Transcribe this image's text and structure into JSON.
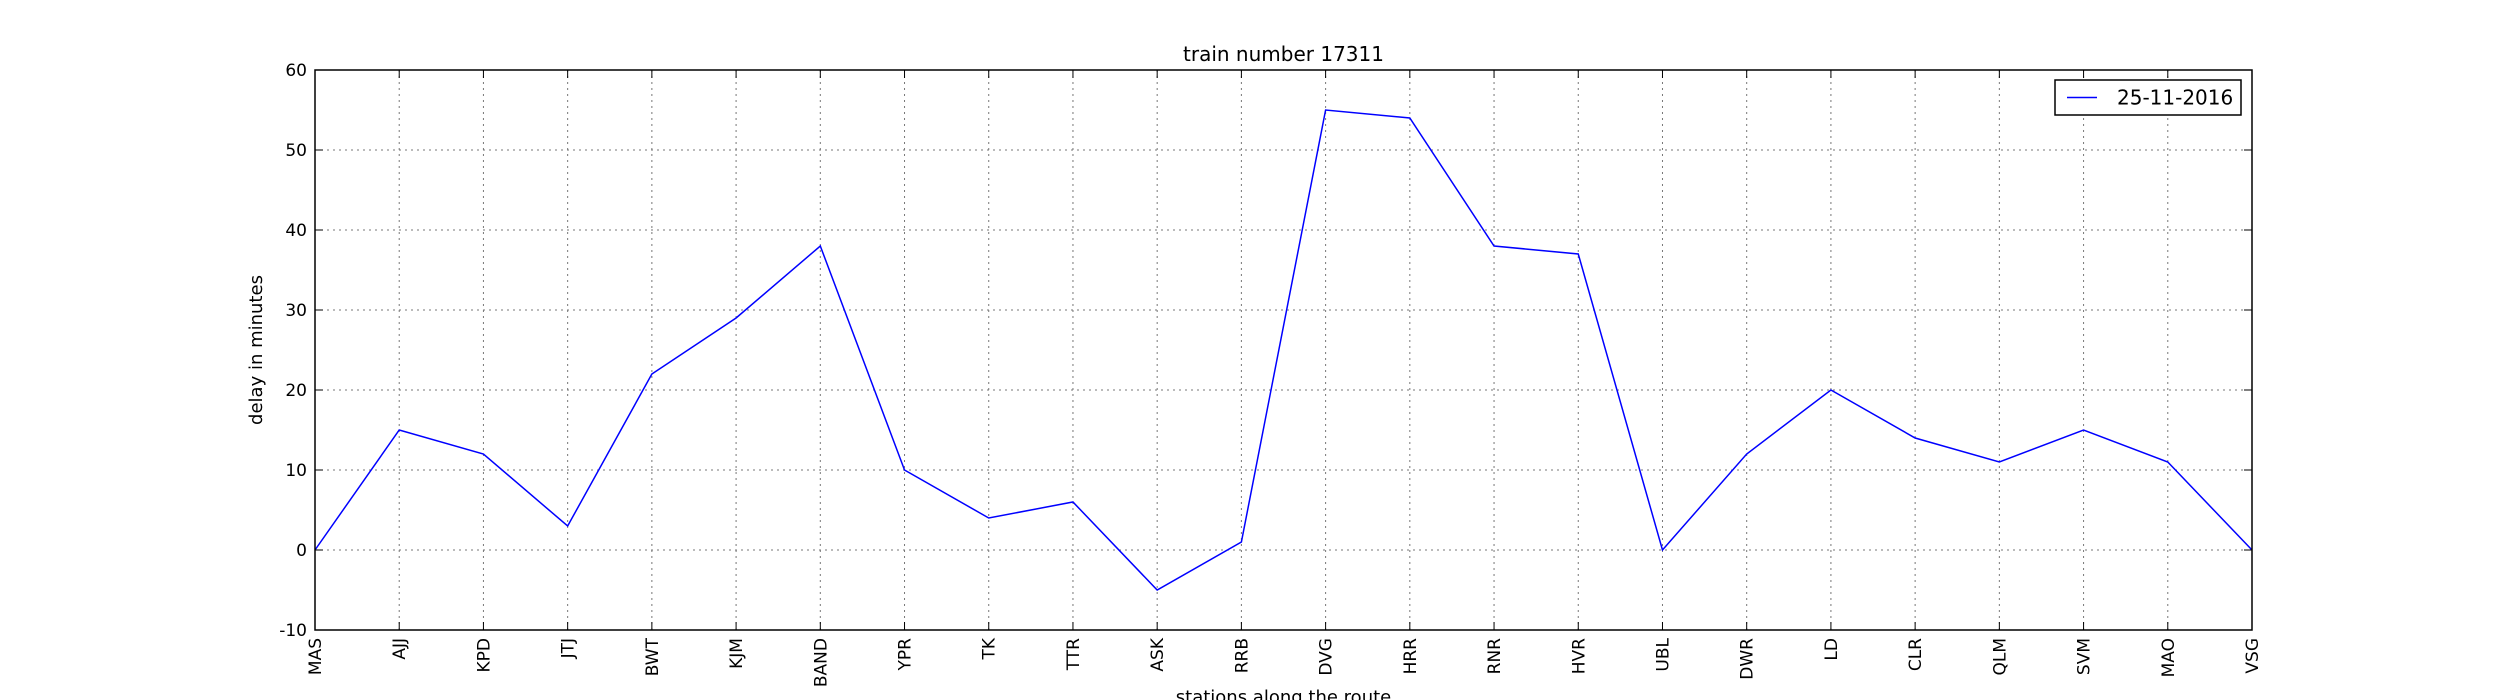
{
  "chart_data": {
    "type": "line",
    "title": "train number 17311",
    "xlabel": "stations along the route",
    "ylabel": "delay in minutes",
    "categories": [
      "MAS",
      "AJJ",
      "KPD",
      "JTJ",
      "BWT",
      "KJM",
      "BAND",
      "YPR",
      "TK",
      "TTR",
      "ASK",
      "RRB",
      "DVG",
      "HRR",
      "RNR",
      "HVR",
      "UBL",
      "DWR",
      "LD",
      "CLR",
      "QLM",
      "SVM",
      "MAO",
      "VSG"
    ],
    "series": [
      {
        "name": "25-11-2016",
        "color": "#0000ff",
        "values": [
          0,
          15,
          12,
          3,
          22,
          29,
          38,
          10,
          4,
          6,
          -5,
          1,
          55,
          54,
          38,
          37,
          0,
          12,
          20,
          14,
          11,
          15,
          11,
          0
        ]
      }
    ],
    "ylim": [
      -10,
      60
    ],
    "yticks": [
      -10,
      0,
      10,
      20,
      30,
      40,
      50,
      60
    ],
    "grid": true,
    "legend_position": "top-right"
  }
}
